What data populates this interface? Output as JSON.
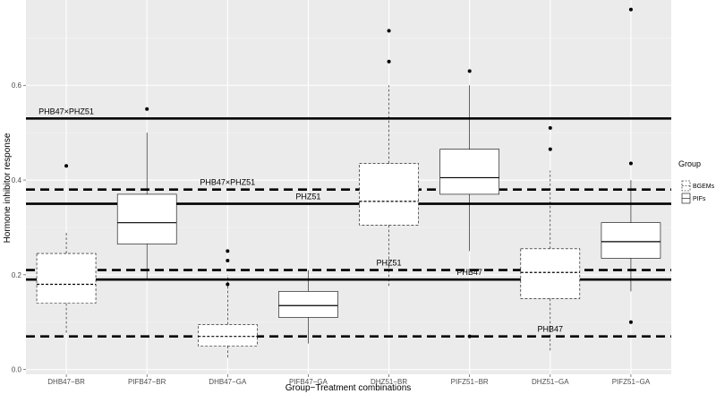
{
  "chart_data": {
    "type": "box",
    "xlabel": "Group−Treatment combinations",
    "ylabel": "Hormone inhibitor response",
    "ylim": [
      -0.01,
      0.78
    ],
    "yticks": [
      "0.0",
      "0.2",
      "0.4",
      "0.6"
    ],
    "yticks_values": [
      0.0,
      0.2,
      0.4,
      0.6
    ],
    "categories": [
      "DHB47−BR",
      "PIFB47−BR",
      "DHB47−GA",
      "PIFB47−GA",
      "DHZ51−BR",
      "PIFZ51−BR",
      "DHZ51−GA",
      "PIFZ51−GA"
    ],
    "legend": {
      "title": "Group",
      "entries": [
        {
          "label": "BGEMs",
          "style": "dashed"
        },
        {
          "label": "PIFs",
          "style": "solid"
        }
      ]
    },
    "boxes": [
      {
        "category": "DHB47−BR",
        "group": "BGEMs",
        "q1": 0.14,
        "median": 0.18,
        "q3": 0.245,
        "whisker_low": 0.075,
        "whisker_high": 0.29,
        "outliers": [
          0.43
        ]
      },
      {
        "category": "PIFB47−BR",
        "group": "PIFs",
        "q1": 0.265,
        "median": 0.31,
        "q3": 0.37,
        "whisker_low": 0.19,
        "whisker_high": 0.5,
        "outliers": [
          0.55
        ]
      },
      {
        "category": "DHB47−GA",
        "group": "BGEMs",
        "q1": 0.05,
        "median": 0.07,
        "q3": 0.095,
        "whisker_low": 0.025,
        "whisker_high": 0.2,
        "outliers": [
          0.18,
          0.23,
          0.25
        ]
      },
      {
        "category": "PIFB47−GA",
        "group": "PIFs",
        "q1": 0.11,
        "median": 0.135,
        "q3": 0.165,
        "whisker_low": 0.055,
        "whisker_high": 0.21,
        "outliers": []
      },
      {
        "category": "DHZ51−BR",
        "group": "BGEMs",
        "q1": 0.305,
        "median": 0.355,
        "q3": 0.435,
        "whisker_low": 0.175,
        "whisker_high": 0.6,
        "outliers": [
          0.65,
          0.715
        ]
      },
      {
        "category": "PIFZ51−BR",
        "group": "PIFs",
        "q1": 0.37,
        "median": 0.405,
        "q3": 0.465,
        "whisker_low": 0.25,
        "whisker_high": 0.6,
        "outliers": [
          0.63,
          0.07
        ]
      },
      {
        "category": "DHZ51−GA",
        "group": "BGEMs",
        "q1": 0.15,
        "median": 0.205,
        "q3": 0.255,
        "whisker_low": 0.04,
        "whisker_high": 0.42,
        "outliers": [
          0.465,
          0.51
        ]
      },
      {
        "category": "PIFZ51−GA",
        "group": "PIFs",
        "q1": 0.235,
        "median": 0.27,
        "q3": 0.31,
        "whisker_low": 0.165,
        "whisker_high": 0.4,
        "outliers": [
          0.435,
          0.1,
          0.76
        ]
      }
    ],
    "hlines": [
      {
        "y": 0.53,
        "style": "solid",
        "label": "PHB47×PHZ51"
      },
      {
        "y": 0.38,
        "style": "dashed",
        "label": "PHB47×PHZ51"
      },
      {
        "y": 0.35,
        "style": "solid",
        "label": "PHZ51"
      },
      {
        "y": 0.21,
        "style": "dashed",
        "label": "PHZ51"
      },
      {
        "y": 0.19,
        "style": "solid",
        "label": "PHB47"
      },
      {
        "y": 0.07,
        "style": "dashed",
        "label": "PHB47"
      }
    ],
    "hline_labels": [
      {
        "text": "PHB47×PHZ51",
        "y": 0.53,
        "category": "DHB47−BR"
      },
      {
        "text": "PHB47×PHZ51",
        "y": 0.38,
        "category": "DHB47−GA"
      },
      {
        "text": "PHZ51",
        "y": 0.35,
        "category": "PIFB47−GA"
      },
      {
        "text": "PHZ51",
        "y": 0.21,
        "category": "DHZ51−BR"
      },
      {
        "text": "PHB47",
        "y": 0.19,
        "category": "PIFZ51−BR"
      },
      {
        "text": "PHB47",
        "y": 0.07,
        "category": "DHZ51−GA"
      }
    ]
  }
}
